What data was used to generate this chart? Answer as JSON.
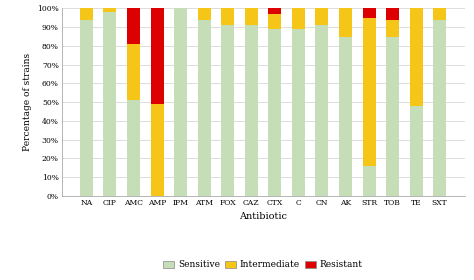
{
  "antibiotics": [
    "NA",
    "CIP",
    "AMC",
    "AMP",
    "IPM",
    "ATM",
    "FOX",
    "CAZ",
    "CTX",
    "C",
    "CN",
    "AK",
    "STR",
    "TOB",
    "TE",
    "SXT"
  ],
  "sensitive": [
    94,
    98,
    51,
    0,
    100,
    94,
    91,
    91,
    89,
    89,
    91,
    85,
    16,
    85,
    48,
    94
  ],
  "intermediate": [
    6,
    2,
    30,
    49,
    0,
    6,
    9,
    9,
    8,
    11,
    9,
    15,
    79,
    9,
    52,
    6
  ],
  "resistant": [
    0,
    0,
    19,
    51,
    0,
    0,
    0,
    0,
    3,
    0,
    0,
    0,
    5,
    6,
    0,
    0
  ],
  "colors": {
    "sensitive": "#c6deb7",
    "intermediate": "#f5c518",
    "resistant": "#dd0000"
  },
  "ylabel": "Percentage of strains",
  "xlabel": "Antibiotic",
  "yticks": [
    0,
    10,
    20,
    30,
    40,
    50,
    60,
    70,
    80,
    90,
    100
  ],
  "ylim": [
    0,
    100
  ],
  "background": "#ffffff",
  "legend_labels": [
    "Sensitive",
    "Intermediate",
    "Resistant"
  ],
  "bar_width": 0.55,
  "figsize": [
    4.74,
    2.8
  ],
  "dpi": 100
}
